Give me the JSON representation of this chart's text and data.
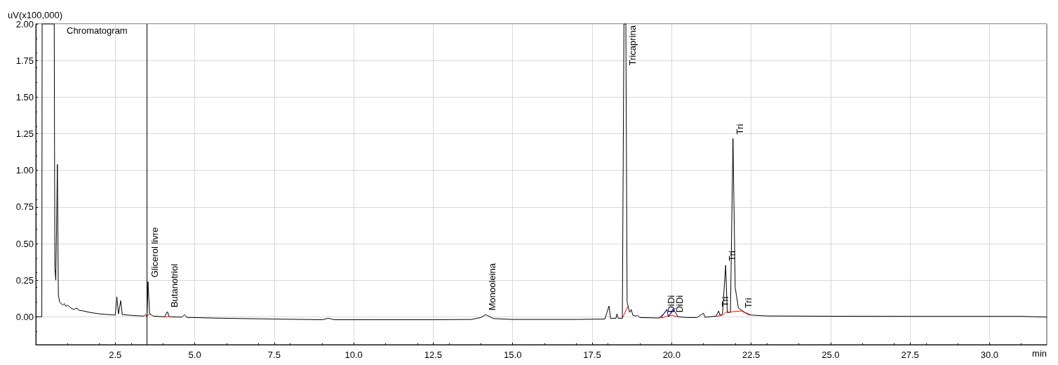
{
  "chart_data": {
    "type": "line",
    "ylabel": "uV(x100,000)",
    "xlabel": "min",
    "xlim": [
      0,
      31.8
    ],
    "ylim": [
      -0.19,
      2.0
    ],
    "xticks": [
      {
        "value": 2.5,
        "label": "2.5"
      },
      {
        "value": 5,
        "label": "5.0"
      },
      {
        "value": 7.5,
        "label": "7.5"
      },
      {
        "value": 10,
        "label": "10.0"
      },
      {
        "value": 12.5,
        "label": "12.5"
      },
      {
        "value": 15,
        "label": "15.0"
      },
      {
        "value": 17.5,
        "label": "17.5"
      },
      {
        "value": 20,
        "label": "20.0"
      },
      {
        "value": 22.5,
        "label": "22.5"
      },
      {
        "value": 25,
        "label": "25.0"
      },
      {
        "value": 27.5,
        "label": "27.5"
      },
      {
        "value": 30,
        "label": "30.0"
      }
    ],
    "yticks": [
      {
        "value": 0,
        "label": "0.00"
      },
      {
        "value": 0.25,
        "label": "0.25"
      },
      {
        "value": 0.5,
        "label": "0.50"
      },
      {
        "value": 0.75,
        "label": "0.75"
      },
      {
        "value": 1,
        "label": "1.00"
      },
      {
        "value": 1.25,
        "label": "1.25"
      },
      {
        "value": 1.5,
        "label": "1.50"
      },
      {
        "value": 1.75,
        "label": "1.75"
      },
      {
        "value": 2,
        "label": "2.00"
      }
    ],
    "grid": true,
    "legend": "top left",
    "marker": "none",
    "line_style": "solid",
    "series": [
      {
        "name": "Chromatogram",
        "color": "#000000",
        "x": [
          0,
          0.19,
          0.2,
          0.58,
          0.6,
          0.63,
          0.68,
          0.71,
          0.75,
          0.85,
          0.9,
          0.95,
          1.0,
          1.1,
          1.2,
          1.3,
          1.35,
          1.5,
          1.7,
          2.0,
          2.3,
          2.5,
          2.55,
          2.6,
          2.67,
          2.72,
          3.0,
          3.4,
          3.45,
          3.5,
          3.53,
          3.58,
          3.7,
          4.05,
          4.14,
          4.2,
          4.6,
          4.68,
          4.75,
          5.5,
          6.5,
          7.5,
          9.0,
          9.2,
          9.4,
          10.5,
          12.5,
          13.7,
          14.0,
          14.15,
          14.4,
          15,
          17.0,
          17.9,
          18.03,
          18.08,
          18.25,
          18.28,
          18.32,
          18.45,
          18.5,
          18.56,
          18.6,
          18.68,
          18.73,
          18.78,
          18.88,
          18.92,
          19.0,
          19.6,
          19.75,
          19.85,
          19.9,
          20.05,
          20.2,
          20.5,
          20.8,
          21.0,
          21.05,
          21.4,
          21.48,
          21.52,
          21.6,
          21.7,
          21.75,
          21.85,
          21.93,
          22.0,
          22.1,
          22.3,
          22.5,
          23.0,
          25,
          28,
          31.0,
          31.8
        ],
        "values": [
          0,
          0,
          2.0,
          2.0,
          0.33,
          0.25,
          1.04,
          0.15,
          0.1,
          0.08,
          0.09,
          0.07,
          0.08,
          0.06,
          0.05,
          0.06,
          0.045,
          0.04,
          0.03,
          0.02,
          0.015,
          0.012,
          0.137,
          0.02,
          0.11,
          0.015,
          0.01,
          0.005,
          0.015,
          0.005,
          0.24,
          0.02,
          0.005,
          0.0,
          0.035,
          0.0,
          -0.002,
          0.015,
          -0.004,
          -0.008,
          -0.012,
          -0.015,
          -0.02,
          -0.01,
          -0.02,
          -0.02,
          -0.02,
          -0.018,
          -0.005,
          0.015,
          -0.012,
          -0.018,
          -0.018,
          -0.015,
          0.074,
          -0.012,
          -0.01,
          0.02,
          -0.01,
          -0.01,
          2.0,
          2.0,
          0.1,
          0.03,
          0.05,
          0.01,
          0.005,
          0.01,
          -0.005,
          -0.008,
          0.02,
          0.05,
          0.0,
          0.055,
          0.0,
          -0.005,
          -0.005,
          0.025,
          -0.003,
          0.005,
          0.04,
          0.01,
          0.02,
          0.352,
          0.03,
          0.03,
          1.217,
          0.2,
          0.06,
          0.03,
          0.012,
          0.006,
          0.004,
          0.003,
          0.003,
          -0.002
        ]
      },
      {
        "color": "#ff0000",
        "x": [
          3.45,
          3.6,
          3.61,
          4.05,
          4.25,
          4.26,
          18.45,
          18.62,
          18.63,
          19.6,
          19.75,
          19.85,
          20.0,
          20.2,
          20.21,
          21.4,
          21.6,
          21.7,
          22.2,
          22.45
        ],
        "values": [
          0.0,
          0.02,
          null,
          0.0,
          0.0,
          null,
          -0.01,
          0.07,
          null,
          -0.008,
          -0.005,
          0.005,
          0.01,
          0.0,
          null,
          0.003,
          0.01,
          0.03,
          0.04,
          0.01
        ]
      },
      {
        "color": "#0000ff",
        "x": [
          19.68,
          19.85,
          19.86,
          19.9,
          20.12
        ],
        "values": [
          -0.003,
          0.05,
          null,
          0.005,
          0.06
        ]
      }
    ],
    "ref_lines": [
      {
        "axis": "x",
        "value": 3.5,
        "color": "#000000"
      }
    ],
    "annotations": [
      {
        "text": "Glicerol livre",
        "x": 3.53,
        "y": 0.24
      },
      {
        "text": "Butanotriol",
        "x": 4.14,
        "y": 0.035
      },
      {
        "text": "Monooleina",
        "x": 14.15,
        "y": 0.015
      },
      {
        "text": "Tricaprina",
        "x": 18.56,
        "y": 2.0
      },
      {
        "text": "Di",
        "x": 19.78,
        "y": 0.0
      },
      {
        "text": "Di",
        "x": 19.78,
        "y": 0.06
      },
      {
        "text": "Di",
        "x": 20.03,
        "y": 0.0
      },
      {
        "text": "Di",
        "x": 20.03,
        "y": 0.06
      },
      {
        "text": "Tri",
        "x": 21.48,
        "y": 0.04
      },
      {
        "text": "Tri",
        "x": 21.7,
        "y": 0.352
      },
      {
        "text": "Tri",
        "x": 21.93,
        "y": 1.217
      },
      {
        "text": "Tri",
        "x": 22.2,
        "y": 0.03
      }
    ]
  }
}
